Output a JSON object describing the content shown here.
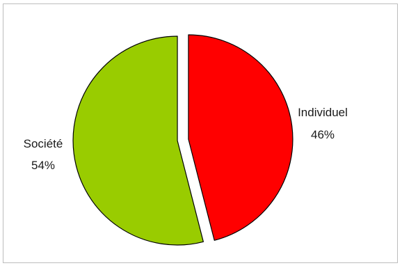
{
  "chart_data": {
    "type": "pie",
    "title": "",
    "slices": [
      {
        "label": "Individuel",
        "value": 46,
        "value_label": "46%",
        "color": "#ff0000"
      },
      {
        "label": "Société",
        "value": 54,
        "value_label": "54%",
        "color": "#99cc00"
      }
    ],
    "exploded": true,
    "legend": "none",
    "start_angle": "12 o'clock",
    "direction": "clockwise"
  }
}
